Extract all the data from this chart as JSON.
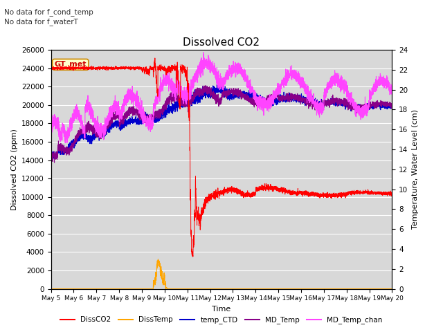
{
  "title": "Dissolved CO2",
  "xlabel": "Time",
  "ylabel_left": "Dissolved CO2 (ppm)",
  "ylabel_right": "Temperature, Water Level (cm)",
  "top_text_1": "No data for f_cond_temp",
  "top_text_2": "No data for f_waterT",
  "gt_met_label": "GT_met",
  "ylim_left": [
    0,
    26000
  ],
  "ylim_right": [
    0,
    24
  ],
  "yticks_left": [
    0,
    2000,
    4000,
    6000,
    8000,
    10000,
    12000,
    14000,
    16000,
    18000,
    20000,
    22000,
    24000,
    26000
  ],
  "yticks_right": [
    0,
    2,
    4,
    6,
    8,
    10,
    12,
    14,
    16,
    18,
    20,
    22,
    24
  ],
  "xtick_labels": [
    "May 5",
    "May 6",
    "May 7",
    "May 8",
    "May 9",
    "May 10",
    "May 11",
    "May 12",
    "May 13",
    "May 14",
    "May 15",
    "May 16",
    "May 17",
    "May 18",
    "May 19",
    "May 20"
  ],
  "legend_entries": [
    {
      "label": "DissCO2",
      "color": "#ff0000"
    },
    {
      "label": "DissTemp",
      "color": "#ffa500"
    },
    {
      "label": "temp_CTD",
      "color": "#0000cc"
    },
    {
      "label": "MD_Temp",
      "color": "#880088"
    },
    {
      "label": "MD_Temp_chan",
      "color": "#ff44ff"
    }
  ],
  "colors": {
    "DissCO2": "#ff0000",
    "DissTemp": "#ffa500",
    "temp_CTD": "#0000cc",
    "MD_Temp": "#880088",
    "MD_Temp_chan": "#ff44ff",
    "plot_bg": "#d8d8d8",
    "gt_met_bg": "#ffffcc",
    "gt_met_border": "#cc8800",
    "gt_met_text": "#cc0000",
    "grid": "#ffffff"
  }
}
